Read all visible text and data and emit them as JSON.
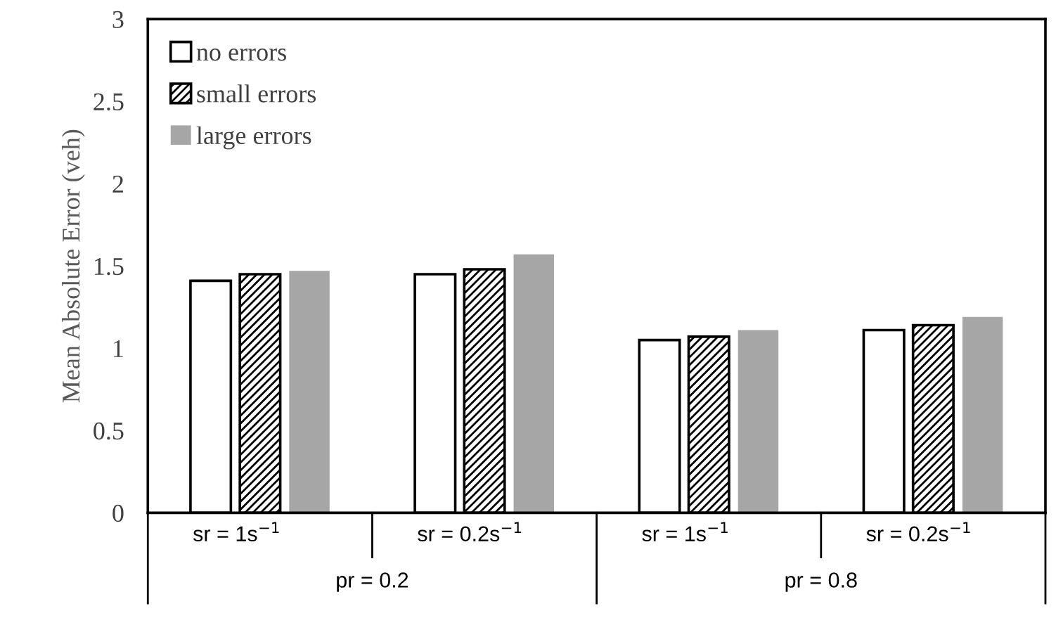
{
  "chart_data": {
    "type": "bar",
    "ylabel": "Mean Absolute Error (veh)",
    "categories": [
      "sr = 1s$^{−1}$",
      "sr = 0.2s$^{−1}$",
      "sr = 1s$^{−1}$",
      "sr = 0.2s$^{−1}$"
    ],
    "series": [
      {
        "name": "no errors",
        "color": "#ffffff",
        "values": [
          1.41,
          1.45,
          1.05,
          1.11
        ]
      },
      {
        "name": "small errors",
        "color": "#000000",
        "values": [
          1.45,
          1.48,
          1.07,
          1.14
        ]
      },
      {
        "name": "large errors",
        "color": "#a6a6a6",
        "values": [
          1.47,
          1.57,
          1.11,
          1.19
        ]
      }
    ],
    "ylim": [
      0,
      3
    ],
    "yticks": [
      0,
      0.5,
      1,
      1.5,
      2,
      2.5,
      3
    ],
    "grid": false,
    "legend": "top left",
    "annotations": [
      "pr = 0.2",
      "pr = 0.8"
    ]
  }
}
